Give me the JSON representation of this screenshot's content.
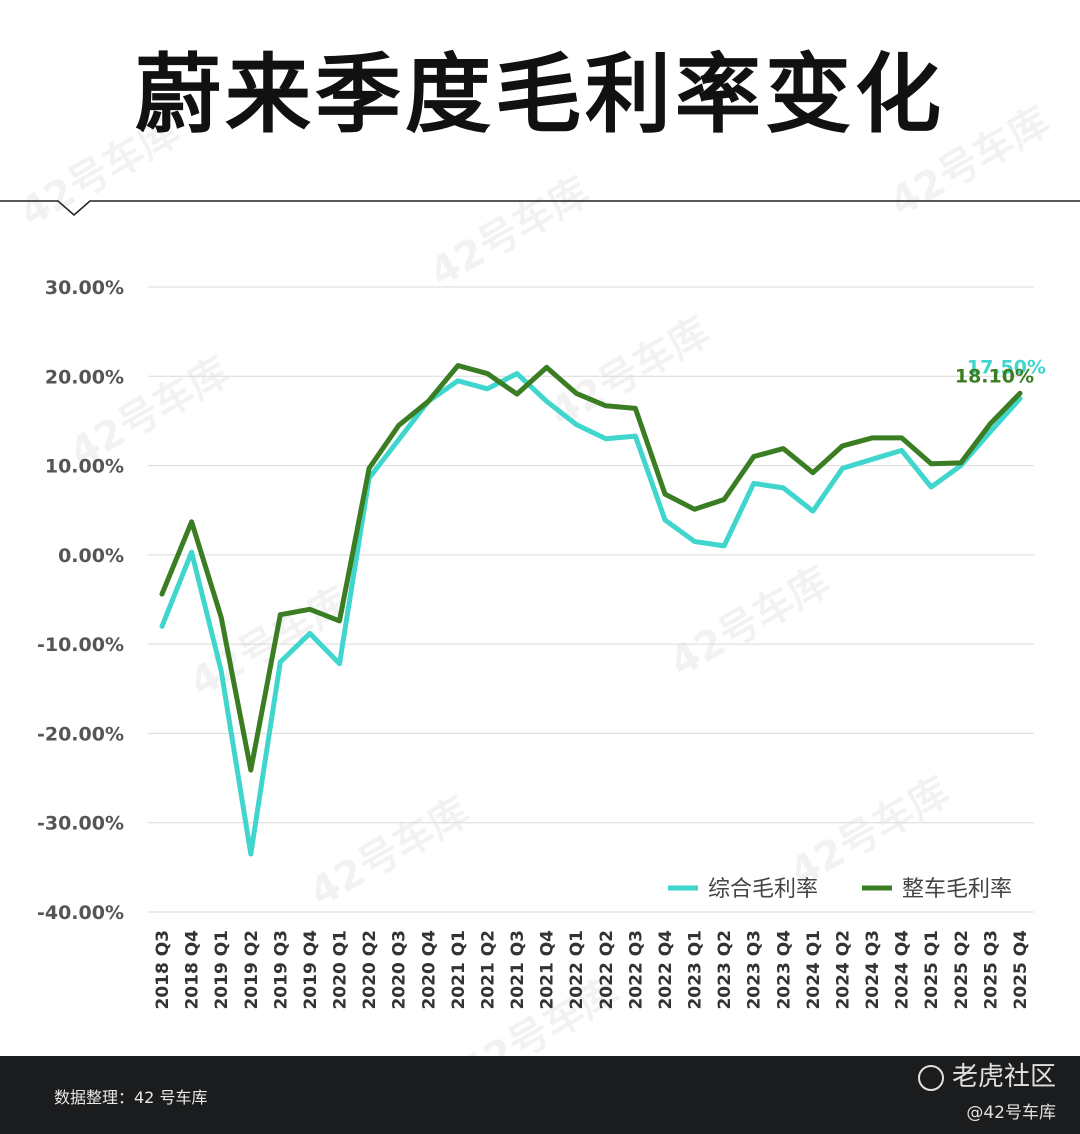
{
  "title": "蔚来季度毛利率变化",
  "watermark": "42号车库",
  "footer": {
    "source": "数据整理：42 号车库",
    "brand": "老虎社区",
    "handle": "@42号车库"
  },
  "chart_data": {
    "type": "line",
    "title": "蔚来季度毛利率变化",
    "xlabel": "",
    "ylabel": "",
    "ylim": [
      -40,
      30
    ],
    "yticks": [
      30,
      20,
      10,
      0,
      -10,
      -20,
      -30,
      -40
    ],
    "ytick_labels": [
      "30.00%",
      "20.00%",
      "10.00%",
      "0.00%",
      "-10.00%",
      "-20.00%",
      "-30.00%",
      "-40.00%"
    ],
    "grid": true,
    "legend_position": "bottom-right",
    "categories": [
      "2018 Q3",
      "2018 Q4",
      "2019 Q1",
      "2019 Q2",
      "2019 Q3",
      "2019 Q4",
      "2020 Q1",
      "2020 Q2",
      "2020 Q3",
      "2020 Q4",
      "2021 Q1",
      "2021 Q2",
      "2021 Q3",
      "2021 Q4",
      "2022 Q1",
      "2022 Q2",
      "2022 Q3",
      "2022 Q4",
      "2023 Q1",
      "2023 Q2",
      "2023 Q3",
      "2023 Q4",
      "2024 Q1",
      "2024 Q2",
      "2024 Q3",
      "2024 Q4",
      "2025 Q1",
      "2025 Q2",
      "2025 Q3",
      "2025 Q4"
    ],
    "series": [
      {
        "name": "综合毛利率",
        "color": "#40d6cd",
        "values": [
          -8.0,
          0.3,
          -13.0,
          -33.5,
          -12.0,
          -8.8,
          -12.2,
          8.6,
          12.9,
          17.2,
          19.5,
          18.6,
          20.3,
          17.2,
          14.6,
          13.0,
          13.3,
          3.9,
          1.5,
          1.0,
          8.0,
          7.5,
          4.9,
          9.7,
          10.7,
          11.7,
          7.6,
          10.0,
          13.8,
          17.5
        ],
        "end_label": "17.50%"
      },
      {
        "name": "整车毛利率",
        "color": "#3b7d23",
        "values": [
          -4.4,
          3.7,
          -7.0,
          -24.1,
          -6.7,
          -6.1,
          -7.4,
          9.7,
          14.5,
          17.2,
          21.2,
          20.3,
          18.0,
          21.0,
          18.1,
          16.7,
          16.4,
          6.8,
          5.1,
          6.2,
          11.0,
          11.9,
          9.2,
          12.2,
          13.1,
          13.1,
          10.2,
          10.3,
          14.7,
          18.1
        ],
        "end_label": "18.10%"
      }
    ]
  }
}
